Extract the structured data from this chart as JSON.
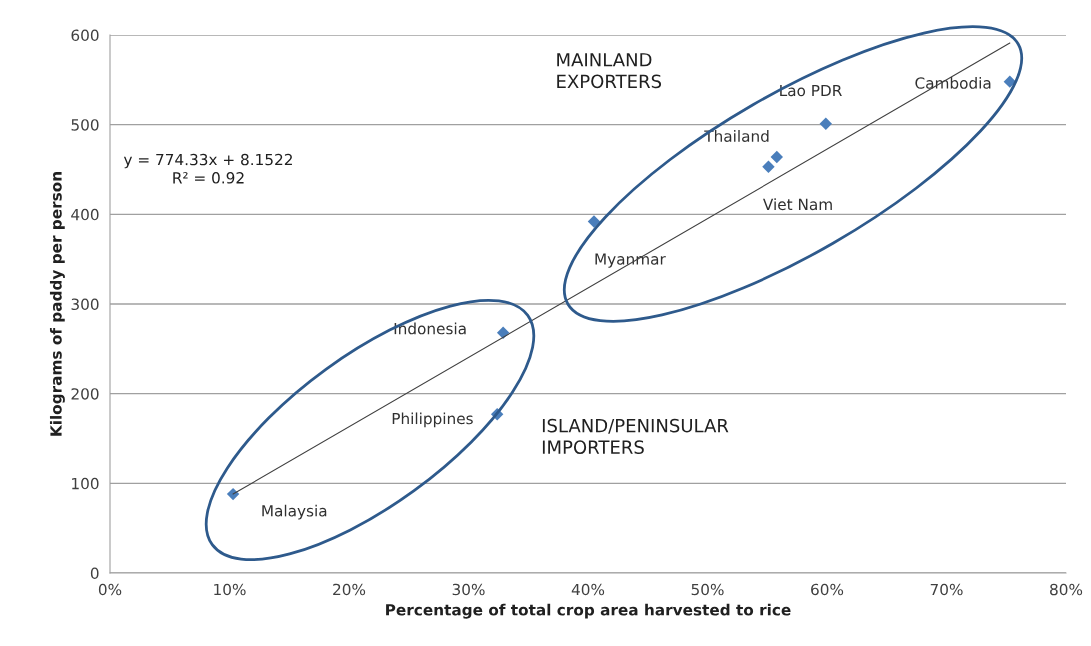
{
  "chart_data": {
    "type": "scatter",
    "xlabel": "Percentage of total crop area harvested to rice",
    "ylabel": "Kilograms of paddy per person",
    "xlim": [
      0,
      80
    ],
    "ylim": [
      0,
      600
    ],
    "xticks": [
      {
        "value": 0,
        "label": "0%"
      },
      {
        "value": 10,
        "label": "10%"
      },
      {
        "value": 20,
        "label": "20%"
      },
      {
        "value": 30,
        "label": "30%"
      },
      {
        "value": 40,
        "label": "40%"
      },
      {
        "value": 50,
        "label": "50%"
      },
      {
        "value": 60,
        "label": "60%"
      },
      {
        "value": 70,
        "label": "70%"
      },
      {
        "value": 80,
        "label": "80%"
      }
    ],
    "yticks": [
      0,
      100,
      200,
      300,
      400,
      500,
      600
    ],
    "grid": "y",
    "legend": false,
    "marker": "diamond",
    "series": [
      {
        "color": "#4a7ebb",
        "x": [
          10.3,
          32.9,
          32.4,
          40.5,
          55.8,
          55.1,
          59.9,
          75.3
        ],
        "values": [
          88,
          268,
          177,
          392,
          464,
          453,
          501,
          548
        ]
      },
      {
        "type": "line",
        "color": "#404040",
        "line_style": "solid",
        "marker": "none",
        "x": [
          10.3,
          75.3
        ],
        "values": [
          88,
          591
        ]
      }
    ],
    "annotations": [
      {
        "text": "Malaysia",
        "x": 10.3,
        "y": 88
      },
      {
        "text": "Indonesia",
        "x": 32.9,
        "y": 268
      },
      {
        "text": "Philippines",
        "x": 32.4,
        "y": 177
      },
      {
        "text": "Myanmar",
        "x": 40.5,
        "y": 392
      },
      {
        "text": "Thailand",
        "x": 55.8,
        "y": 464
      },
      {
        "text": "Viet Nam",
        "x": 55.1,
        "y": 453
      },
      {
        "text": "Lao PDR",
        "x": 59.9,
        "y": 501
      },
      {
        "text": "Cambodia",
        "x": 75.3,
        "y": 548
      },
      "MAINLAND\nEXPORTERS",
      "ISLAND/PENINSULAR\nIMPORTERS",
      "y = 774.33x + 8.1522\nR² = 0.92"
    ]
  }
}
